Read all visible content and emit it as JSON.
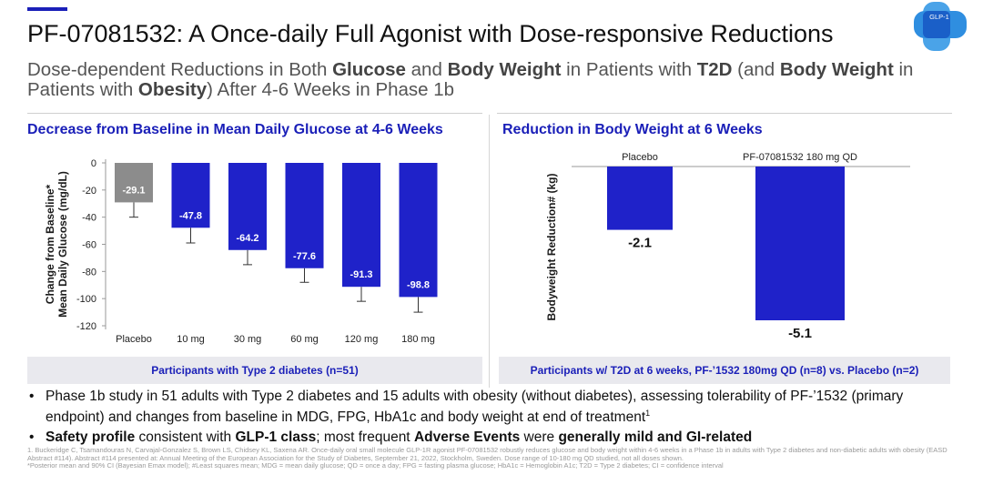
{
  "header": {
    "title": "PF-07081532: A Once-daily Full Agonist with Dose-responsive Reductions",
    "logo_label": "GLP-1"
  },
  "subtitle": {
    "parts": [
      {
        "text": "Dose-dependent Reductions in Both ",
        "bold": false
      },
      {
        "text": "Glucose",
        "bold": true
      },
      {
        "text": " and ",
        "bold": false
      },
      {
        "text": "Body Weight",
        "bold": true
      },
      {
        "text": " in Patients with ",
        "bold": false
      },
      {
        "text": "T2D",
        "bold": true
      },
      {
        "text": " (and ",
        "bold": false
      },
      {
        "text": "Body Weight",
        "bold": true
      },
      {
        "text": " in Patients with ",
        "bold": false
      },
      {
        "text": "Obesity",
        "bold": true
      },
      {
        "text": ") After 4-6 Weeks in Phase 1b",
        "bold": false
      }
    ]
  },
  "colors": {
    "brand_blue": "#1a1fb8",
    "bar_blue": "#1f22c9",
    "placebo_gray": "#8c8c8c",
    "footer_bg": "#e9e9ee"
  },
  "chart_data": [
    {
      "type": "bar",
      "title": "Decrease from Baseline in Mean Daily Glucose at 4-6 Weeks",
      "ylabel_line1": "Change from Baseline*",
      "ylabel_line2": "Mean Daily Glucose (mg/dL)",
      "xlabel": "",
      "categories": [
        "Placebo",
        "10 mg",
        "30 mg",
        "60 mg",
        "120 mg",
        "180 mg"
      ],
      "values": [
        -29.1,
        -47.8,
        -64.2,
        -77.6,
        -91.3,
        -98.8
      ],
      "value_labels": [
        "-29.1",
        "-47.8",
        "-64.2",
        "-77.6",
        "-91.3",
        "-98.8"
      ],
      "error_low": [
        -40,
        -59,
        -75,
        -88,
        -102,
        -110
      ],
      "ylim": [
        -120,
        0
      ],
      "yticks": [
        0,
        -20,
        -40,
        -60,
        -80,
        -100,
        -120
      ],
      "grid": false,
      "legend": "none",
      "bar_colors": [
        "#8c8c8c",
        "#1f22c9",
        "#1f22c9",
        "#1f22c9",
        "#1f22c9",
        "#1f22c9"
      ],
      "footer": "Participants with Type 2 diabetes (n=51)"
    },
    {
      "type": "bar",
      "title": "Reduction in Body Weight at 6 Weeks",
      "ylabel": "Bodyweight Reduction# (kg)",
      "categories": [
        "Placebo",
        "PF-07081532 180 mg QD"
      ],
      "values": [
        -2.1,
        -5.1
      ],
      "value_labels": [
        "-2.1",
        "-5.1"
      ],
      "ylim": [
        -5.1,
        0
      ],
      "grid": false,
      "legend": "none",
      "footer": "Participants w/ T2D at 6 weeks, PF-’1532 180mg QD (n=8) vs. Placebo (n=2)"
    }
  ],
  "bullets": [
    {
      "parts": [
        {
          "text": "Phase 1b study in 51 adults with Type 2 diabetes and 15 adults with obesity (without diabetes), assessing tolerability of PF-’1532 (primary endpoint) and changes from baseline in MDG, FPG, HbA1c and body weight at end of treatment",
          "bold": false
        },
        {
          "text": "1",
          "sup": true
        }
      ]
    },
    {
      "parts": [
        {
          "text": "Safety profile",
          "bold": true
        },
        {
          "text": " consistent with ",
          "bold": false
        },
        {
          "text": "GLP-1 class",
          "bold": true
        },
        {
          "text": "; most frequent ",
          "bold": false
        },
        {
          "text": "Adverse Events",
          "bold": true
        },
        {
          "text": " were ",
          "bold": false
        },
        {
          "text": "generally mild and GI-related",
          "bold": true
        }
      ]
    }
  ],
  "footnotes": {
    "reference": "1. Buckeridge C, Tsamandouras N, Carvajal-Gonzalez S, Brown LS, Chidsey KL, Saxena AR. Once-daily oral small molecule GLP-1R agonist PF-07081532 robustly reduces glucose and body weight within 4-6 weeks in a Phase 1b in adults with Type 2 diabetes and non-diabetic adults with obesity (EASD Abstract #114). Abstract #114 presented at: Annual Meeting of the European Association for the Study of Diabetes, September 21, 2022, Stockholm, Sweden. Dose range of 10-180 mg QD studied, not all doses shown.",
    "abbreviations": "*Posterior mean and 90% CI (Bayesian Emax model); #Least squares mean; MDG = mean daily glucose; QD = once a day; FPG = fasting plasma glucose; HbA1c = Hemoglobin A1c; T2D = Type 2 diabetes; CI = confidence interval"
  }
}
